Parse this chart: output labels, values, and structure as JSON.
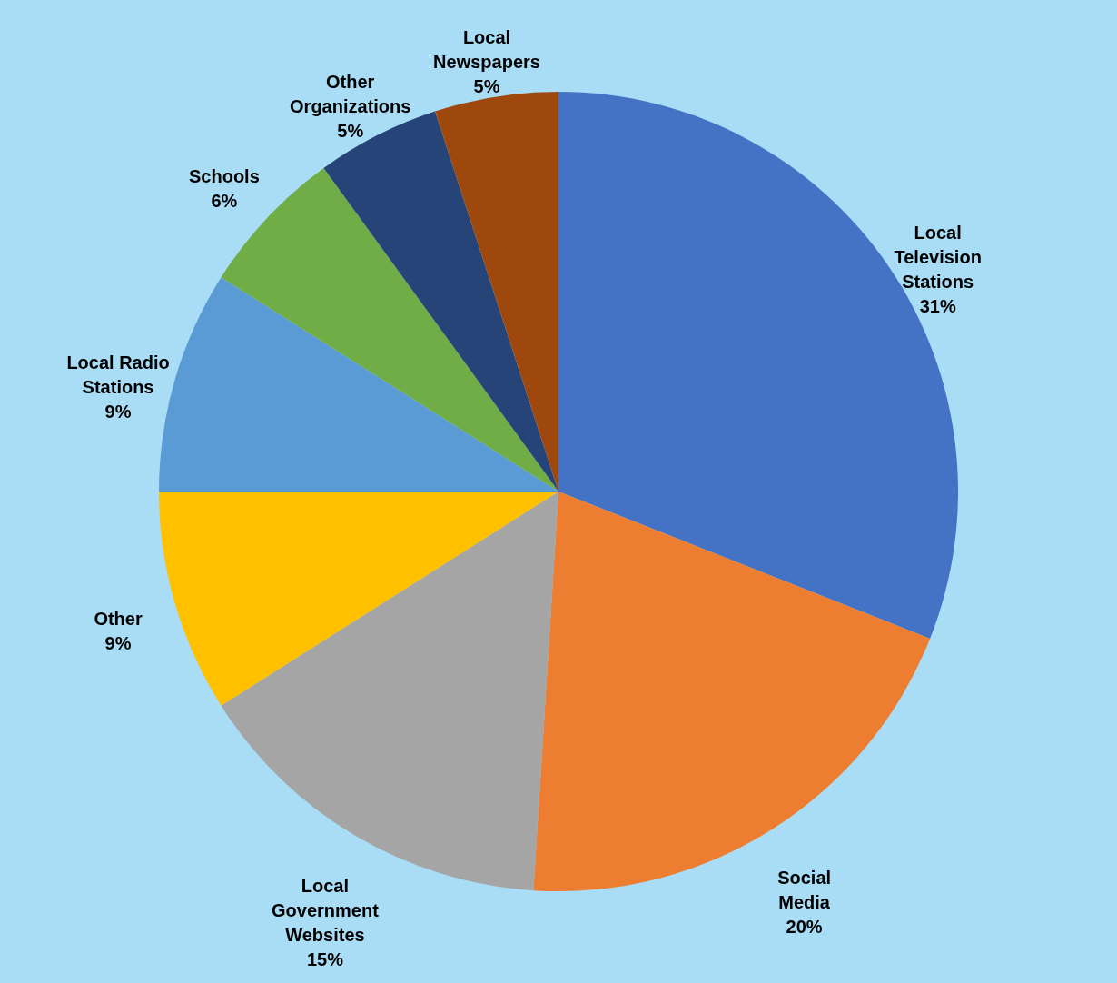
{
  "chart_data": {
    "type": "pie",
    "categories": [
      "Local Television Stations",
      "Social Media",
      "Local Government Websites",
      "Other",
      "Local Radio Stations",
      "Schools",
      "Other Organizations",
      "Local Newspapers"
    ],
    "values": [
      31,
      20,
      15,
      9,
      9,
      6,
      5,
      5
    ],
    "colors": [
      "#4472c4",
      "#ed7d31",
      "#a5a5a5",
      "#ffc000",
      "#5b9bd5",
      "#70ad47",
      "#264478",
      "#9e480e"
    ],
    "value_labels": [
      "31%",
      "20%",
      "15%",
      "9%",
      "9%",
      "6%",
      "5%",
      "5%"
    ]
  }
}
